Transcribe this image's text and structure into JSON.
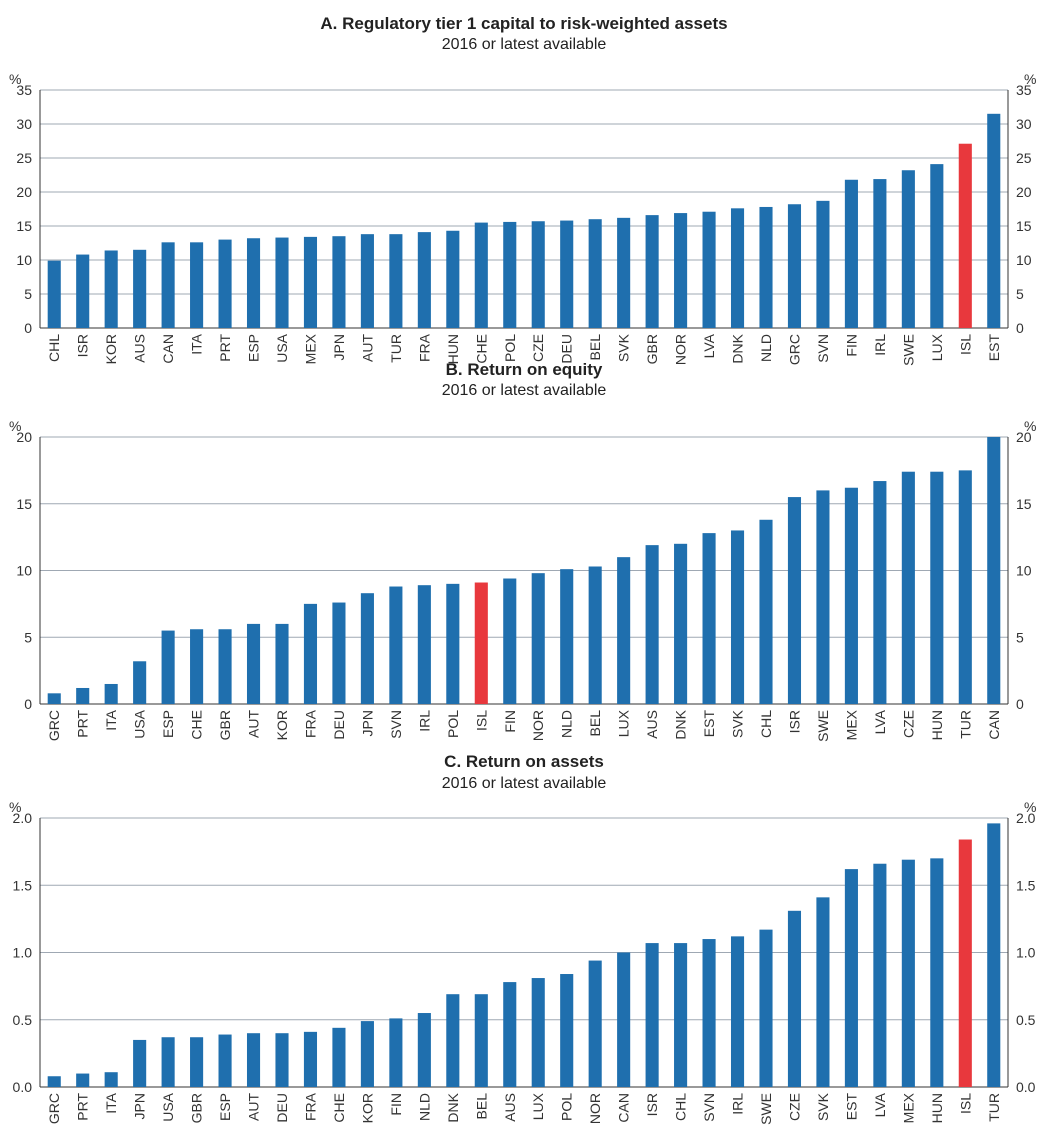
{
  "colors": {
    "bar": "#1f6fae",
    "highlight": "#e8383d",
    "grid": "#9fa8b3",
    "axis": "#333333"
  },
  "chart_data": [
    {
      "type": "bar",
      "title": "A. Regulatory tier 1 capital to risk-weighted assets",
      "subtitle": "2016 or latest available",
      "unit_left": "%",
      "unit_right": "%",
      "ylim": [
        0,
        35
      ],
      "yticks": [
        "0",
        "5",
        "10",
        "15",
        "20",
        "25",
        "30",
        "35"
      ],
      "ytick_values": [
        0,
        5,
        10,
        15,
        20,
        25,
        30,
        35
      ],
      "grid": true,
      "highlight": "ISL",
      "categories": [
        "CHL",
        "ISR",
        "KOR",
        "AUS",
        "CAN",
        "ITA",
        "PRT",
        "ESP",
        "USA",
        "MEX",
        "JPN",
        "AUT",
        "TUR",
        "FRA",
        "HUN",
        "CHE",
        "POL",
        "CZE",
        "DEU",
        "BEL",
        "SVK",
        "GBR",
        "NOR",
        "LVA",
        "DNK",
        "NLD",
        "GRC",
        "SVN",
        "FIN",
        "IRL",
        "SWE",
        "LUX",
        "ISL",
        "EST"
      ],
      "values": [
        9.9,
        10.8,
        11.4,
        11.5,
        12.6,
        12.6,
        13.0,
        13.2,
        13.3,
        13.4,
        13.5,
        13.8,
        13.8,
        14.1,
        14.3,
        15.5,
        15.6,
        15.7,
        15.8,
        16.0,
        16.2,
        16.6,
        16.9,
        17.1,
        17.6,
        17.8,
        18.2,
        18.7,
        21.8,
        21.9,
        23.2,
        24.1,
        27.1,
        31.5
      ]
    },
    {
      "type": "bar",
      "title": "B. Return on equity",
      "subtitle": "2016 or latest available",
      "unit_left": "%",
      "unit_right": "%",
      "ylim": [
        0,
        20
      ],
      "yticks": [
        "0",
        "5",
        "10",
        "15",
        "20"
      ],
      "ytick_values": [
        0,
        5,
        10,
        15,
        20
      ],
      "grid": true,
      "highlight": "ISL",
      "categories": [
        "GRC",
        "PRT",
        "ITA",
        "USA",
        "ESP",
        "CHE",
        "GBR",
        "AUT",
        "KOR",
        "FRA",
        "DEU",
        "JPN",
        "SVN",
        "IRL",
        "POL",
        "ISL",
        "FIN",
        "NOR",
        "NLD",
        "BEL",
        "LUX",
        "AUS",
        "DNK",
        "EST",
        "SVK",
        "CHL",
        "ISR",
        "SWE",
        "MEX",
        "LVA",
        "CZE",
        "HUN",
        "TUR",
        "CAN"
      ],
      "values": [
        0.8,
        1.2,
        1.5,
        3.2,
        5.5,
        5.6,
        5.6,
        6.0,
        6.0,
        7.5,
        7.6,
        8.3,
        8.8,
        8.9,
        9.0,
        9.1,
        9.4,
        9.8,
        10.1,
        10.3,
        11.0,
        11.9,
        12.0,
        12.8,
        13.0,
        13.8,
        15.5,
        16.0,
        16.2,
        16.7,
        17.4,
        17.4,
        17.5,
        20.0
      ]
    },
    {
      "type": "bar",
      "title": "C. Return on assets",
      "subtitle": "2016 or latest available",
      "unit_left": "%",
      "unit_right": "%",
      "ylim": [
        0,
        2.0
      ],
      "yticks": [
        "0.0",
        "0.5",
        "1.0",
        "1.5",
        "2.0"
      ],
      "ytick_values": [
        0,
        0.5,
        1.0,
        1.5,
        2.0
      ],
      "grid": true,
      "highlight": "ISL",
      "categories": [
        "GRC",
        "PRT",
        "ITA",
        "JPN",
        "USA",
        "GBR",
        "ESP",
        "AUT",
        "DEU",
        "FRA",
        "CHE",
        "KOR",
        "FIN",
        "NLD",
        "DNK",
        "BEL",
        "AUS",
        "LUX",
        "POL",
        "NOR",
        "CAN",
        "ISR",
        "CHL",
        "SVN",
        "IRL",
        "SWE",
        "CZE",
        "SVK",
        "EST",
        "LVA",
        "MEX",
        "HUN",
        "ISL",
        "TUR"
      ],
      "values": [
        0.08,
        0.1,
        0.11,
        0.35,
        0.37,
        0.37,
        0.39,
        0.4,
        0.4,
        0.41,
        0.44,
        0.49,
        0.51,
        0.55,
        0.69,
        0.69,
        0.78,
        0.81,
        0.84,
        0.94,
        1.0,
        1.07,
        1.07,
        1.1,
        1.12,
        1.17,
        1.31,
        1.41,
        1.62,
        1.66,
        1.69,
        1.7,
        1.84,
        1.96
      ]
    }
  ]
}
